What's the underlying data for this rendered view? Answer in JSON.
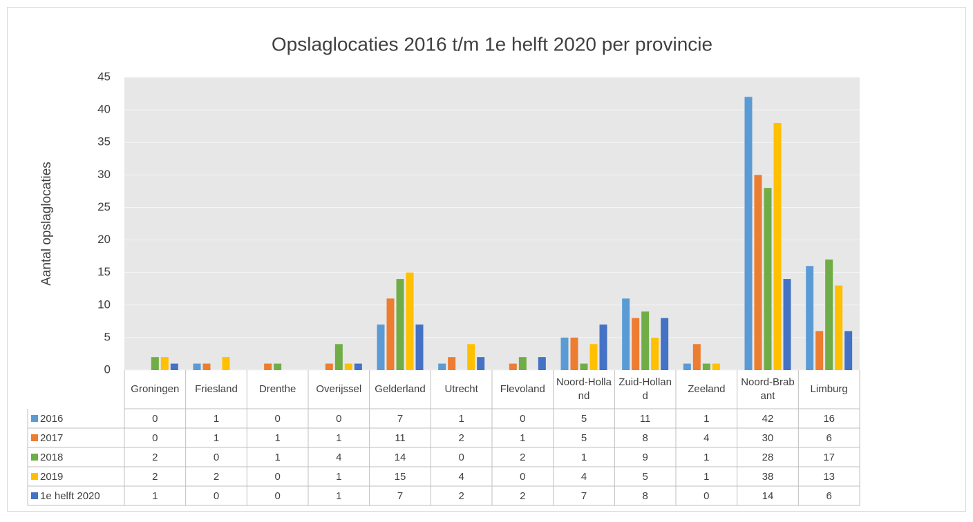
{
  "chart_data": {
    "type": "bar",
    "title": "Opslaglocaties 2016 t/m 1e helft 2020 per provincie",
    "y_label": "Aantal opslaglocaties",
    "categories": [
      "Groningen",
      "Friesland",
      "Drenthe",
      "Overijssel",
      "Gelderland",
      "Utrecht",
      "Flevoland",
      "Noord-Holland",
      "Zuid-Holland",
      "Zeeland",
      "Noord-Brabant",
      "Limburg"
    ],
    "series": [
      {
        "name": "2016",
        "color": "#5b9bd5",
        "values": [
          0,
          1,
          0,
          0,
          7,
          1,
          0,
          5,
          11,
          1,
          42,
          16
        ]
      },
      {
        "name": "2017",
        "color": "#ed7d31",
        "values": [
          0,
          1,
          1,
          1,
          11,
          2,
          1,
          5,
          8,
          4,
          30,
          6
        ]
      },
      {
        "name": "2018",
        "color": "#70ad47",
        "values": [
          2,
          0,
          1,
          4,
          14,
          0,
          2,
          1,
          9,
          1,
          28,
          17
        ]
      },
      {
        "name": "2019",
        "color": "#ffc000",
        "values": [
          2,
          2,
          0,
          1,
          15,
          4,
          0,
          4,
          5,
          1,
          38,
          13
        ]
      },
      {
        "name": "1e helft 2020",
        "color": "#4472c4",
        "values": [
          1,
          0,
          0,
          1,
          7,
          2,
          2,
          7,
          8,
          0,
          14,
          6
        ]
      }
    ],
    "ylim": [
      0,
      45
    ],
    "yticks": [
      0,
      5,
      10,
      15,
      20,
      25,
      30,
      35,
      40,
      45
    ],
    "grid": true
  }
}
